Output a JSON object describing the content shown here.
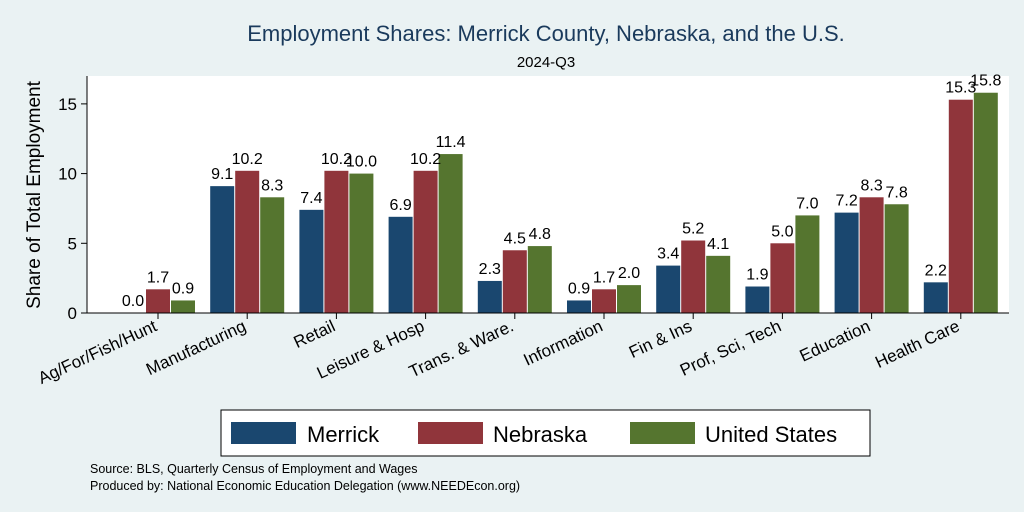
{
  "chart_data": {
    "type": "bar",
    "title": "Employment Shares: Merrick County, Nebraska, and the U.S.",
    "subtitle": "2024-Q3",
    "ylabel": "Share of Total Employment",
    "ylim": [
      0,
      17
    ],
    "yticks": [
      0,
      5,
      10,
      15
    ],
    "categories": [
      "Ag/For/Fish/Hunt",
      "Manufacturing",
      "Retail",
      "Leisure & Hosp",
      "Trans. & Ware.",
      "Information",
      "Fin & Ins",
      "Prof, Sci, Tech",
      "Education",
      "Health Care"
    ],
    "series": [
      {
        "name": "Merrick",
        "color": "#1a476f",
        "values": [
          0.0,
          9.1,
          7.4,
          6.9,
          2.3,
          0.9,
          3.4,
          1.9,
          7.2,
          2.2
        ]
      },
      {
        "name": "Nebraska",
        "color": "#90353b",
        "values": [
          1.7,
          10.2,
          10.2,
          10.2,
          4.5,
          1.7,
          5.2,
          5.0,
          8.3,
          15.3
        ]
      },
      {
        "name": "United States",
        "color": "#55752f",
        "values": [
          0.9,
          8.3,
          10.0,
          11.4,
          4.8,
          2.0,
          4.1,
          7.0,
          7.8,
          15.8
        ]
      }
    ],
    "legend_position": "bottom",
    "grid": false
  },
  "notes": {
    "source": "Source: BLS, Quarterly Census of Employment and Wages",
    "produced": "Produced by: National Economic Education Delegation (www.NEEDEcon.org)"
  }
}
